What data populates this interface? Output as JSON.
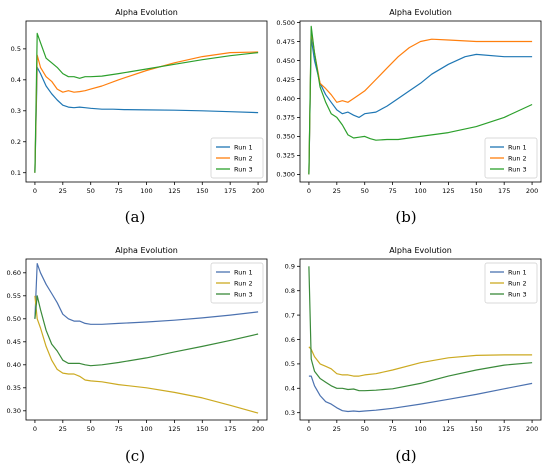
{
  "chart_data": [
    {
      "type": "line",
      "title": "Alpha Evolution",
      "label": "(a)",
      "xlim": [
        -8,
        208
      ],
      "ylim": [
        0.07,
        0.59
      ],
      "xticks": [
        0,
        25,
        50,
        75,
        100,
        125,
        150,
        175,
        200
      ],
      "yticks": [
        0.1,
        0.2,
        0.3,
        0.4,
        0.5
      ],
      "yprec": 1,
      "legend": "lower-right",
      "series": [
        {
          "name": "Run 1",
          "color": "#1f77b4",
          "x": [
            0,
            2,
            5,
            10,
            15,
            20,
            25,
            30,
            35,
            40,
            45,
            50,
            60,
            70,
            80,
            100,
            125,
            150,
            175,
            200
          ],
          "y": [
            0.1,
            0.44,
            0.42,
            0.38,
            0.355,
            0.335,
            0.318,
            0.312,
            0.31,
            0.312,
            0.31,
            0.308,
            0.305,
            0.305,
            0.304,
            0.303,
            0.302,
            0.3,
            0.297,
            0.294
          ]
        },
        {
          "name": "Run 2",
          "color": "#ff7f0e",
          "x": [
            0,
            2,
            5,
            10,
            15,
            20,
            25,
            30,
            35,
            40,
            45,
            50,
            60,
            75,
            100,
            125,
            150,
            175,
            200
          ],
          "y": [
            0.1,
            0.48,
            0.44,
            0.41,
            0.395,
            0.37,
            0.36,
            0.365,
            0.36,
            0.362,
            0.365,
            0.37,
            0.38,
            0.4,
            0.43,
            0.455,
            0.475,
            0.488,
            0.49
          ]
        },
        {
          "name": "Run 3",
          "color": "#2ca02c",
          "x": [
            0,
            2,
            5,
            10,
            15,
            20,
            25,
            30,
            35,
            40,
            45,
            50,
            60,
            75,
            100,
            125,
            150,
            175,
            200
          ],
          "y": [
            0.1,
            0.55,
            0.52,
            0.47,
            0.455,
            0.44,
            0.42,
            0.41,
            0.41,
            0.405,
            0.41,
            0.41,
            0.412,
            0.42,
            0.435,
            0.45,
            0.465,
            0.478,
            0.488
          ]
        }
      ]
    },
    {
      "type": "line",
      "title": "Alpha Evolution",
      "label": "(b)",
      "xlim": [
        -8,
        208
      ],
      "ylim": [
        0.29,
        0.502
      ],
      "xticks": [
        0,
        25,
        50,
        75,
        100,
        125,
        150,
        175,
        200
      ],
      "yticks": [
        0.3,
        0.325,
        0.35,
        0.375,
        0.4,
        0.425,
        0.45,
        0.475,
        0.5
      ],
      "yprec": 3,
      "legend": "lower-right",
      "series": [
        {
          "name": "Run 1",
          "color": "#1f77b4",
          "x": [
            0,
            2,
            5,
            10,
            15,
            20,
            25,
            30,
            35,
            40,
            45,
            50,
            60,
            70,
            80,
            90,
            100,
            110,
            125,
            140,
            150,
            175,
            200
          ],
          "y": [
            0.3,
            0.48,
            0.45,
            0.42,
            0.405,
            0.395,
            0.385,
            0.38,
            0.382,
            0.378,
            0.375,
            0.38,
            0.382,
            0.39,
            0.4,
            0.41,
            0.42,
            0.432,
            0.445,
            0.455,
            0.458,
            0.455,
            0.455
          ]
        },
        {
          "name": "Run 2",
          "color": "#ff7f0e",
          "x": [
            0,
            2,
            5,
            10,
            15,
            20,
            25,
            30,
            35,
            40,
            45,
            50,
            60,
            70,
            80,
            90,
            100,
            110,
            125,
            150,
            175,
            200
          ],
          "y": [
            0.3,
            0.49,
            0.46,
            0.42,
            0.413,
            0.405,
            0.395,
            0.397,
            0.395,
            0.4,
            0.405,
            0.41,
            0.425,
            0.44,
            0.455,
            0.467,
            0.475,
            0.478,
            0.477,
            0.475,
            0.475,
            0.475
          ]
        },
        {
          "name": "Run 3",
          "color": "#2ca02c",
          "x": [
            0,
            2,
            5,
            10,
            15,
            20,
            25,
            30,
            35,
            40,
            45,
            50,
            55,
            60,
            70,
            80,
            100,
            125,
            150,
            175,
            200
          ],
          "y": [
            0.3,
            0.495,
            0.46,
            0.415,
            0.395,
            0.38,
            0.375,
            0.365,
            0.352,
            0.348,
            0.349,
            0.35,
            0.347,
            0.345,
            0.346,
            0.346,
            0.35,
            0.355,
            0.363,
            0.375,
            0.392
          ]
        }
      ]
    },
    {
      "type": "line",
      "title": "Alpha Evolution",
      "label": "(c)",
      "xlim": [
        -8,
        208
      ],
      "ylim": [
        0.28,
        0.63
      ],
      "xticks": [
        0,
        25,
        50,
        75,
        100,
        125,
        150,
        175,
        200
      ],
      "yticks": [
        0.3,
        0.35,
        0.4,
        0.45,
        0.5,
        0.55,
        0.6
      ],
      "yprec": 2,
      "legend": "top-right",
      "series": [
        {
          "name": "Run 1",
          "color": "#4c72b0",
          "x": [
            0,
            2,
            5,
            10,
            15,
            20,
            25,
            30,
            35,
            40,
            45,
            50,
            60,
            75,
            100,
            125,
            150,
            175,
            200
          ],
          "y": [
            0.5,
            0.62,
            0.6,
            0.575,
            0.555,
            0.535,
            0.51,
            0.5,
            0.495,
            0.495,
            0.49,
            0.488,
            0.488,
            0.49,
            0.493,
            0.497,
            0.502,
            0.508,
            0.515
          ]
        },
        {
          "name": "Run 2",
          "color": "#ccaa22",
          "x": [
            0,
            2,
            5,
            10,
            15,
            20,
            25,
            30,
            35,
            40,
            45,
            50,
            60,
            75,
            100,
            125,
            150,
            175,
            200
          ],
          "y": [
            0.55,
            0.5,
            0.48,
            0.44,
            0.41,
            0.39,
            0.382,
            0.38,
            0.38,
            0.375,
            0.367,
            0.365,
            0.363,
            0.357,
            0.35,
            0.34,
            0.328,
            0.312,
            0.295
          ]
        },
        {
          "name": "Run 3",
          "color": "#3a8a3a",
          "x": [
            0,
            2,
            5,
            10,
            15,
            20,
            25,
            30,
            35,
            40,
            45,
            50,
            60,
            75,
            100,
            125,
            150,
            175,
            200
          ],
          "y": [
            0.5,
            0.55,
            0.52,
            0.475,
            0.445,
            0.43,
            0.41,
            0.403,
            0.403,
            0.403,
            0.4,
            0.398,
            0.4,
            0.405,
            0.415,
            0.428,
            0.44,
            0.453,
            0.467
          ]
        }
      ]
    },
    {
      "type": "line",
      "title": "Alpha Evolution",
      "label": "(d)",
      "xlim": [
        -8,
        208
      ],
      "ylim": [
        0.27,
        0.93
      ],
      "xticks": [
        0,
        25,
        50,
        75,
        100,
        125,
        150,
        175,
        200
      ],
      "yticks": [
        0.3,
        0.4,
        0.5,
        0.6,
        0.7,
        0.8,
        0.9
      ],
      "yprec": 1,
      "legend": "top-right",
      "series": [
        {
          "name": "Run 1",
          "color": "#4c72b0",
          "x": [
            0,
            2,
            5,
            10,
            15,
            20,
            25,
            30,
            35,
            40,
            45,
            50,
            60,
            75,
            100,
            125,
            150,
            175,
            200
          ],
          "y": [
            0.45,
            0.45,
            0.41,
            0.37,
            0.345,
            0.335,
            0.32,
            0.308,
            0.305,
            0.307,
            0.305,
            0.307,
            0.31,
            0.318,
            0.335,
            0.355,
            0.375,
            0.398,
            0.42
          ]
        },
        {
          "name": "Run 2",
          "color": "#ccaa22",
          "x": [
            0,
            2,
            5,
            10,
            15,
            20,
            25,
            30,
            35,
            40,
            45,
            50,
            60,
            75,
            100,
            125,
            150,
            175,
            200
          ],
          "y": [
            0.57,
            0.56,
            0.53,
            0.5,
            0.49,
            0.48,
            0.46,
            0.455,
            0.455,
            0.45,
            0.45,
            0.455,
            0.46,
            0.475,
            0.505,
            0.525,
            0.535,
            0.537,
            0.537
          ]
        },
        {
          "name": "Run 3",
          "color": "#3a8a3a",
          "x": [
            0,
            2,
            5,
            10,
            15,
            20,
            25,
            30,
            35,
            40,
            45,
            50,
            60,
            75,
            100,
            125,
            150,
            175,
            200
          ],
          "y": [
            0.9,
            0.52,
            0.47,
            0.44,
            0.425,
            0.41,
            0.4,
            0.4,
            0.395,
            0.397,
            0.39,
            0.39,
            0.392,
            0.398,
            0.42,
            0.45,
            0.475,
            0.495,
            0.505
          ]
        }
      ]
    }
  ]
}
